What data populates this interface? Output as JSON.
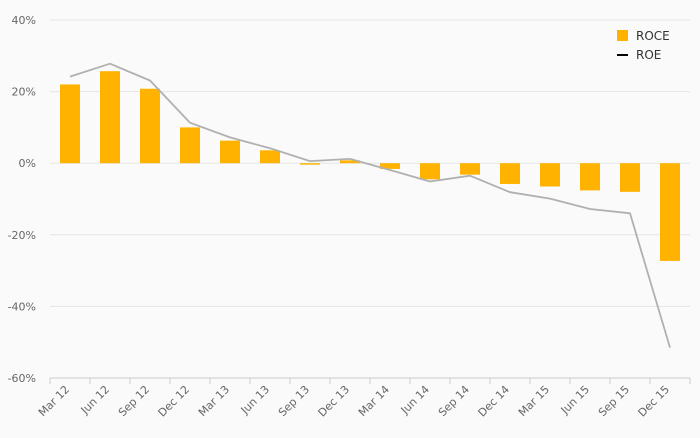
{
  "chart_data": {
    "type": "bar",
    "categories": [
      "Mar 12",
      "Jun 12",
      "Sep 12",
      "Dec 12",
      "Mar 13",
      "Jun 13",
      "Sep 13",
      "Dec 13",
      "Mar 14",
      "Jun 14",
      "Sep 14",
      "Dec 14",
      "Mar 15",
      "Jun 15",
      "Sep 15",
      "Dec 15"
    ],
    "series": [
      {
        "name": "ROCE",
        "type": "bar",
        "color": "#ffb300",
        "values": [
          22,
          25.7,
          20.8,
          10,
          6.3,
          3.6,
          -0.4,
          0.8,
          -1.6,
          -4.5,
          -3.2,
          -5.8,
          -6.5,
          -7.6,
          -8,
          -27.3
        ]
      },
      {
        "name": "ROE",
        "type": "line",
        "color": "#b0b0b0",
        "values": [
          24.2,
          27.8,
          23.1,
          11.3,
          7.2,
          4.2,
          0.6,
          1.2,
          -1.9,
          -5.1,
          -3.5,
          -8.1,
          -9.9,
          -12.8,
          -14,
          -51.5
        ]
      }
    ],
    "ylim": [
      -60,
      40
    ],
    "yticks": [
      -60,
      -40,
      -20,
      0,
      20,
      40
    ],
    "ytick_labels": [
      "-60%",
      "-40%",
      "-20%",
      "0%",
      "20%",
      "40%"
    ],
    "grid": true,
    "legend": {
      "position": "top-right",
      "line_marker_color": "#000000"
    }
  }
}
